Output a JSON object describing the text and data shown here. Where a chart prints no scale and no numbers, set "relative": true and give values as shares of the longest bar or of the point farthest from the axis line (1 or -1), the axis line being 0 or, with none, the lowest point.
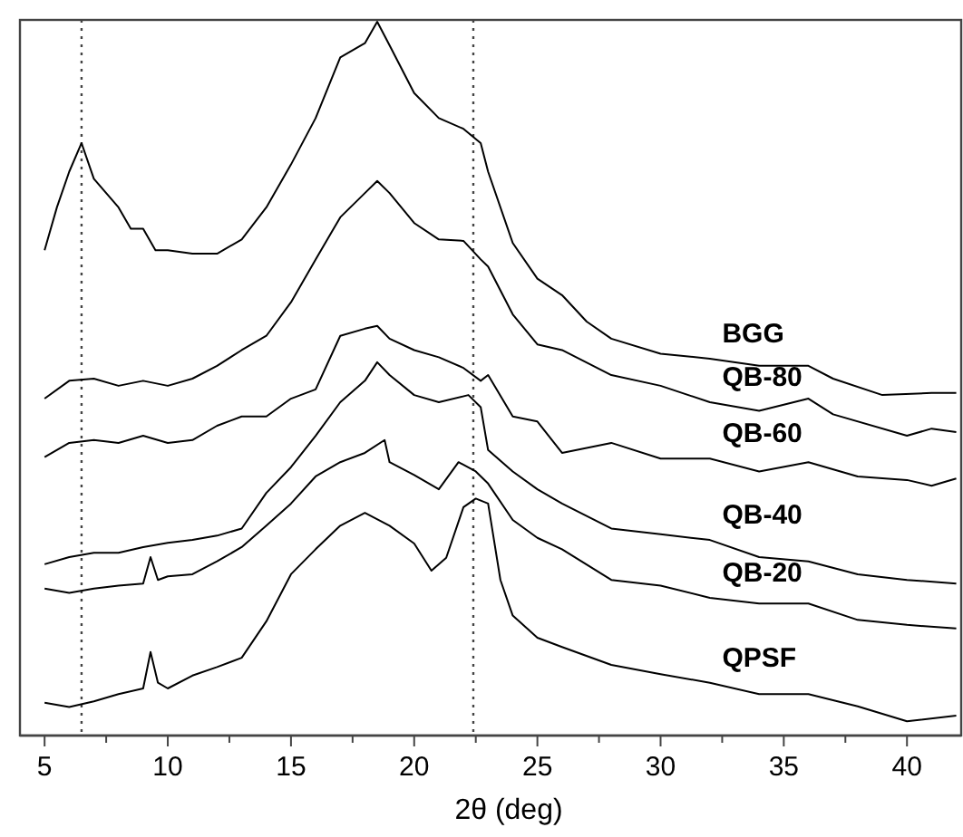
{
  "chart_data": {
    "type": "line",
    "relative": true,
    "xlabel": "2θ (deg)",
    "xlim": [
      4,
      42.2
    ],
    "xticks": [
      5,
      {
        "value": 7.5,
        "label": null
      },
      10,
      {
        "value": 12.5,
        "label": null
      },
      15,
      {
        "value": 17.5,
        "label": null
      },
      20,
      {
        "value": 22.5,
        "label": null
      },
      25,
      {
        "value": 27.5,
        "label": null
      },
      30,
      {
        "value": 32.5,
        "label": null
      },
      35,
      {
        "value": 37.5,
        "label": null
      },
      40
    ],
    "ref_lines": [
      {
        "axis": "x",
        "value": 6.5,
        "line_style": "dotted"
      },
      {
        "axis": "x",
        "value": 22.4,
        "line_style": "dotted"
      }
    ],
    "series": [
      {
        "name": "BGG",
        "color": "#000000",
        "x": [
          5,
          5.5,
          6,
          6.5,
          7,
          7.5,
          8,
          8.5,
          9,
          9.5,
          10,
          11,
          12,
          13,
          14,
          15,
          16,
          17,
          18,
          18.5,
          19,
          20,
          21,
          22,
          22.7,
          23,
          24,
          25,
          26,
          27,
          28,
          30,
          32,
          34,
          36,
          37,
          39,
          41,
          42
        ],
        "values": [
          0.68,
          0.74,
          0.79,
          0.83,
          0.78,
          0.76,
          0.74,
          0.71,
          0.71,
          0.68,
          0.68,
          0.675,
          0.675,
          0.695,
          0.74,
          0.8,
          0.865,
          0.95,
          0.97,
          1,
          0.967,
          0.9,
          0.865,
          0.85,
          0.83,
          0.79,
          0.69,
          0.64,
          0.617,
          0.58,
          0.556,
          0.535,
          0.528,
          0.518,
          0.518,
          0.5,
          0.477,
          0.48,
          0.48
        ]
      },
      {
        "name": "QB-80",
        "color": "#000000",
        "x": [
          5,
          6,
          7,
          8,
          9,
          10,
          11,
          12,
          13,
          14,
          15,
          16,
          17,
          18,
          18.5,
          19,
          20,
          21,
          22,
          22.7,
          23,
          24,
          25,
          26,
          28,
          30,
          32,
          34,
          36,
          37,
          40,
          41,
          42
        ],
        "values": [
          0.472,
          0.497,
          0.5,
          0.49,
          0.497,
          0.49,
          0.5,
          0.518,
          0.54,
          0.56,
          0.607,
          0.667,
          0.726,
          0.76,
          0.777,
          0.76,
          0.718,
          0.695,
          0.693,
          0.667,
          0.657,
          0.59,
          0.548,
          0.54,
          0.505,
          0.49,
          0.467,
          0.455,
          0.472,
          0.45,
          0.42,
          0.43,
          0.425
        ]
      },
      {
        "name": "QB-60",
        "color": "#000000",
        "x": [
          5,
          6,
          7,
          8,
          9,
          10,
          11,
          12,
          13,
          14,
          15,
          16,
          17,
          18,
          18.5,
          19,
          20,
          21,
          22,
          22.7,
          23,
          24,
          25,
          26,
          28,
          30,
          32,
          34,
          36,
          38,
          40,
          41,
          42
        ],
        "values": [
          0.39,
          0.41,
          0.414,
          0.41,
          0.42,
          0.41,
          0.414,
          0.434,
          0.447,
          0.447,
          0.472,
          0.485,
          0.56,
          0.57,
          0.574,
          0.556,
          0.54,
          0.53,
          0.515,
          0.497,
          0.505,
          0.447,
          0.44,
          0.396,
          0.41,
          0.388,
          0.388,
          0.37,
          0.383,
          0.363,
          0.358,
          0.35,
          0.36
        ]
      },
      {
        "name": "QB-40",
        "color": "#000000",
        "x": [
          5,
          6,
          7,
          8,
          9,
          10,
          11,
          12,
          13,
          14,
          15,
          16,
          17,
          18,
          18.5,
          19,
          20,
          21,
          22.2,
          22.7,
          23,
          24,
          25,
          26,
          28,
          30,
          32,
          34,
          36,
          38,
          40,
          42
        ],
        "values": [
          0.24,
          0.25,
          0.256,
          0.256,
          0.264,
          0.27,
          0.274,
          0.28,
          0.29,
          0.34,
          0.376,
          0.42,
          0.467,
          0.497,
          0.523,
          0.505,
          0.477,
          0.467,
          0.477,
          0.46,
          0.4,
          0.37,
          0.345,
          0.325,
          0.29,
          0.282,
          0.274,
          0.25,
          0.244,
          0.226,
          0.218,
          0.213
        ]
      },
      {
        "name": "QB-20",
        "color": "#000000",
        "x": [
          5,
          6,
          7,
          8,
          9,
          9.3,
          9.6,
          10,
          11,
          12,
          13,
          14,
          15,
          16,
          17,
          18,
          18.8,
          19,
          20,
          21,
          21.8,
          22.5,
          23,
          24,
          25,
          26,
          28,
          30,
          32,
          34,
          36,
          38,
          40,
          42
        ],
        "values": [
          0.206,
          0.2,
          0.206,
          0.21,
          0.213,
          0.25,
          0.218,
          0.223,
          0.226,
          0.244,
          0.264,
          0.294,
          0.325,
          0.363,
          0.383,
          0.396,
          0.414,
          0.383,
          0.365,
          0.345,
          0.383,
          0.37,
          0.353,
          0.302,
          0.277,
          0.261,
          0.218,
          0.21,
          0.193,
          0.185,
          0.185,
          0.162,
          0.155,
          0.15
        ]
      },
      {
        "name": "QPSF",
        "color": "#000000",
        "x": [
          5,
          6,
          7,
          8,
          9,
          9.3,
          9.6,
          10,
          11,
          12,
          13,
          14,
          15,
          16,
          17,
          18,
          19,
          20,
          20.7,
          21.3,
          22,
          22.5,
          23,
          23.5,
          24,
          25,
          26,
          28,
          30,
          32,
          34,
          36,
          38,
          40,
          42
        ],
        "values": [
          0.046,
          0.04,
          0.048,
          0.058,
          0.066,
          0.117,
          0.074,
          0.066,
          0.084,
          0.096,
          0.109,
          0.16,
          0.226,
          0.261,
          0.294,
          0.312,
          0.294,
          0.269,
          0.231,
          0.249,
          0.32,
          0.332,
          0.325,
          0.218,
          0.168,
          0.137,
          0.124,
          0.099,
          0.086,
          0.074,
          0.058,
          0.058,
          0.041,
          0.02,
          0.028
        ]
      }
    ]
  }
}
